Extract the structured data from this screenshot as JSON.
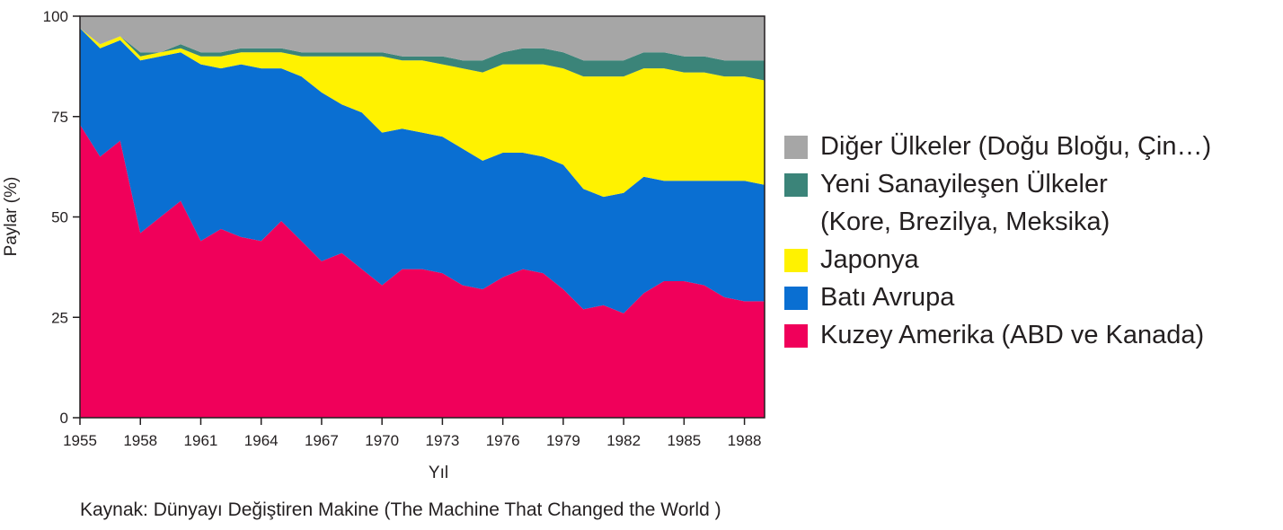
{
  "chart_data": {
    "type": "area",
    "stacked": true,
    "xlabel": "Yıl",
    "ylabel": "Paylar (%)",
    "ylim": [
      0,
      100
    ],
    "xlim": [
      1955,
      1989
    ],
    "x_ticks": [
      "1955",
      "1958",
      "1961",
      "1964",
      "1967",
      "1970",
      "1973",
      "1976",
      "1979",
      "1982",
      "1985",
      "1988"
    ],
    "y_ticks": [
      "0",
      "25",
      "50",
      "75",
      "100"
    ],
    "x": [
      1955,
      1956,
      1957,
      1958,
      1959,
      1960,
      1961,
      1962,
      1963,
      1964,
      1965,
      1966,
      1967,
      1968,
      1969,
      1970,
      1971,
      1972,
      1973,
      1974,
      1975,
      1976,
      1977,
      1978,
      1979,
      1980,
      1981,
      1982,
      1983,
      1984,
      1985,
      1986,
      1987,
      1988,
      1989
    ],
    "series": [
      {
        "name": "Kuzey Amerika (ABD ve Kanada)",
        "color": "#f0005a",
        "values": [
          73,
          65,
          69,
          46,
          50,
          54,
          44,
          47,
          45,
          44,
          49,
          44,
          39,
          41,
          37,
          33,
          37,
          37,
          36,
          33,
          32,
          35,
          37,
          36,
          32,
          27,
          28,
          26,
          31,
          34,
          34,
          33,
          30,
          29,
          29
        ]
      },
      {
        "name": "Batı Avrupa",
        "color": "#0a6fd2",
        "values": [
          24,
          27,
          25,
          43,
          40,
          37,
          44,
          40,
          43,
          43,
          38,
          41,
          42,
          37,
          39,
          38,
          35,
          34,
          34,
          34,
          32,
          31,
          29,
          29,
          31,
          30,
          27,
          30,
          29,
          25,
          25,
          26,
          29,
          30,
          29
        ]
      },
      {
        "name": "Japonya",
        "color": "#fff200",
        "values": [
          0,
          1,
          1,
          1,
          1,
          1,
          2,
          3,
          3,
          4,
          4,
          5,
          9,
          12,
          14,
          19,
          17,
          18,
          18,
          20,
          22,
          22,
          22,
          23,
          24,
          28,
          30,
          29,
          27,
          28,
          27,
          27,
          26,
          26,
          26
        ]
      },
      {
        "name": "Yeni Sanayileşen Ülkeler\n(Kore, Brezilya, Meksika)",
        "color": "#3b8479",
        "values": [
          0,
          0,
          0,
          1,
          0,
          1,
          1,
          1,
          1,
          1,
          1,
          1,
          1,
          1,
          1,
          1,
          1,
          1,
          2,
          2,
          3,
          3,
          4,
          4,
          4,
          4,
          4,
          4,
          4,
          4,
          4,
          4,
          4,
          4,
          5
        ]
      },
      {
        "name": "Diğer Ülkeler (Doğu Bloğu, Çin…)",
        "color": "#a6a6a6",
        "values": [
          3,
          7,
          5,
          9,
          9,
          7,
          9,
          9,
          8,
          8,
          8,
          9,
          9,
          9,
          9,
          9,
          10,
          10,
          10,
          11,
          11,
          9,
          8,
          8,
          9,
          11,
          11,
          11,
          9,
          9,
          10,
          10,
          11,
          11,
          11
        ]
      }
    ],
    "legend": {
      "placement": "right",
      "order": [
        "Diğer Ülkeler (Doğu Bloğu, Çin…)",
        "Yeni Sanayileşen Ülkeler\n(Kore, Brezilya, Meksika)",
        "Japonya",
        "Batı Avrupa",
        "Kuzey Amerika (ABD ve Kanada)"
      ]
    },
    "grid": false
  },
  "source": "Kaynak: Dünyayı Değiştiren Makine (The Machine That Changed the World )"
}
